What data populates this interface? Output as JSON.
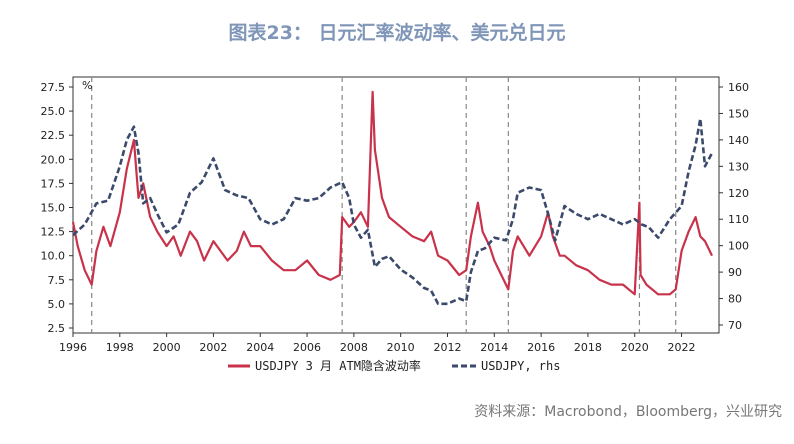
{
  "title": "图表23： 日元汇率波动率、美元兑日元",
  "source": "资料来源：Macrobond，Bloomberg，兴业研究",
  "chart_data": {
    "type": "line",
    "left_axis_unit": "%",
    "x_ticks": [
      "1996",
      "1998",
      "2000",
      "2002",
      "2004",
      "2006",
      "2008",
      "2010",
      "2012",
      "2014",
      "2016",
      "2018",
      "2020",
      "2022"
    ],
    "xlim": [
      1996,
      2023.6
    ],
    "y_left": {
      "ticks": [
        "2.5",
        "5.0",
        "7.5",
        "10.0",
        "12.5",
        "15.0",
        "17.5",
        "20.0",
        "22.5",
        "25.0",
        "27.5"
      ],
      "lim": [
        2.5,
        27.5
      ]
    },
    "y_right": {
      "ticks": [
        "70",
        "80",
        "90",
        "100",
        "110",
        "120",
        "130",
        "140",
        "150",
        "160"
      ],
      "lim": [
        67,
        162
      ],
      "label": "rhs"
    },
    "event_lines_x": [
      1996.8,
      2007.5,
      2012.8,
      2014.6,
      2020.2,
      2021.75
    ],
    "series": [
      {
        "name": "USDJPY 3 月 ATM隐含波动率",
        "axis": "left",
        "color": "#c8324a",
        "x": [
          1996.0,
          1996.2,
          1996.5,
          1996.8,
          1997.0,
          1997.3,
          1997.6,
          1998.0,
          1998.3,
          1998.6,
          1998.8,
          1999.0,
          1999.3,
          1999.6,
          2000.0,
          2000.3,
          2000.6,
          2001.0,
          2001.3,
          2001.6,
          2002.0,
          2002.3,
          2002.6,
          2003.0,
          2003.3,
          2003.6,
          2004.0,
          2004.5,
          2005.0,
          2005.5,
          2006.0,
          2006.5,
          2007.0,
          2007.4,
          2007.5,
          2007.8,
          2008.0,
          2008.3,
          2008.6,
          2008.8,
          2008.9,
          2009.2,
          2009.5,
          2010.0,
          2010.5,
          2011.0,
          2011.3,
          2011.6,
          2012.0,
          2012.5,
          2012.8,
          2013.0,
          2013.3,
          2013.5,
          2013.8,
          2014.0,
          2014.3,
          2014.6,
          2014.8,
          2015.0,
          2015.5,
          2016.0,
          2016.3,
          2016.5,
          2016.8,
          2017.0,
          2017.5,
          2018.0,
          2018.5,
          2019.0,
          2019.5,
          2020.0,
          2020.2,
          2020.25,
          2020.5,
          2021.0,
          2021.5,
          2021.75,
          2022.0,
          2022.3,
          2022.6,
          2022.8,
          2023.0,
          2023.3
        ],
        "y": [
          13.5,
          11.0,
          8.5,
          7.0,
          10.5,
          13.0,
          11.0,
          14.5,
          19.0,
          22.0,
          16.0,
          17.5,
          14.0,
          12.5,
          11.0,
          12.0,
          10.0,
          12.5,
          11.5,
          9.5,
          11.5,
          10.5,
          9.5,
          10.5,
          12.5,
          11.0,
          11.0,
          9.5,
          8.5,
          8.5,
          9.5,
          8.0,
          7.5,
          8.0,
          14.0,
          13.0,
          13.5,
          14.5,
          13.0,
          27.0,
          21.0,
          16.0,
          14.0,
          13.0,
          12.0,
          11.5,
          12.5,
          10.0,
          9.5,
          8.0,
          8.5,
          12.0,
          15.5,
          12.5,
          11.0,
          9.5,
          8.0,
          6.5,
          10.5,
          12.0,
          10.0,
          12.0,
          14.5,
          12.0,
          10.0,
          10.0,
          9.0,
          8.5,
          7.5,
          7.0,
          7.0,
          6.0,
          15.5,
          8.0,
          7.0,
          6.0,
          6.0,
          6.5,
          10.5,
          12.5,
          14.0,
          12.0,
          11.5,
          10.0
        ]
      },
      {
        "name": "USDJPY, rhs",
        "axis": "right",
        "color": "#3b4a6b",
        "x": [
          1996.0,
          1996.5,
          1997.0,
          1997.5,
          1998.0,
          1998.3,
          1998.6,
          1998.8,
          1999.0,
          1999.3,
          1999.6,
          2000.0,
          2000.5,
          2001.0,
          2001.5,
          2002.0,
          2002.5,
          2003.0,
          2003.5,
          2004.0,
          2004.5,
          2005.0,
          2005.5,
          2006.0,
          2006.5,
          2007.0,
          2007.5,
          2007.8,
          2008.0,
          2008.3,
          2008.6,
          2008.9,
          2009.2,
          2009.5,
          2010.0,
          2010.5,
          2011.0,
          2011.3,
          2011.6,
          2012.0,
          2012.5,
          2012.8,
          2013.0,
          2013.3,
          2013.6,
          2014.0,
          2014.5,
          2014.8,
          2015.0,
          2015.5,
          2016.0,
          2016.3,
          2016.6,
          2017.0,
          2017.5,
          2018.0,
          2018.5,
          2019.0,
          2019.5,
          2020.0,
          2020.3,
          2020.6,
          2021.0,
          2021.5,
          2022.0,
          2022.3,
          2022.6,
          2022.8,
          2023.0,
          2023.3
        ],
        "y": [
          104,
          108,
          116,
          117,
          130,
          140,
          145,
          135,
          116,
          118,
          112,
          105,
          108,
          120,
          124,
          133,
          121,
          119,
          118,
          110,
          108,
          110,
          118,
          117,
          118,
          122,
          124,
          118,
          108,
          103,
          106,
          92,
          95,
          96,
          91,
          88,
          84,
          83,
          78,
          78,
          80,
          79,
          90,
          98,
          99,
          103,
          102,
          110,
          120,
          122,
          121,
          112,
          102,
          115,
          112,
          110,
          112,
          110,
          108,
          110,
          108,
          107,
          103,
          110,
          115,
          128,
          138,
          148,
          130,
          135
        ]
      }
    ]
  }
}
